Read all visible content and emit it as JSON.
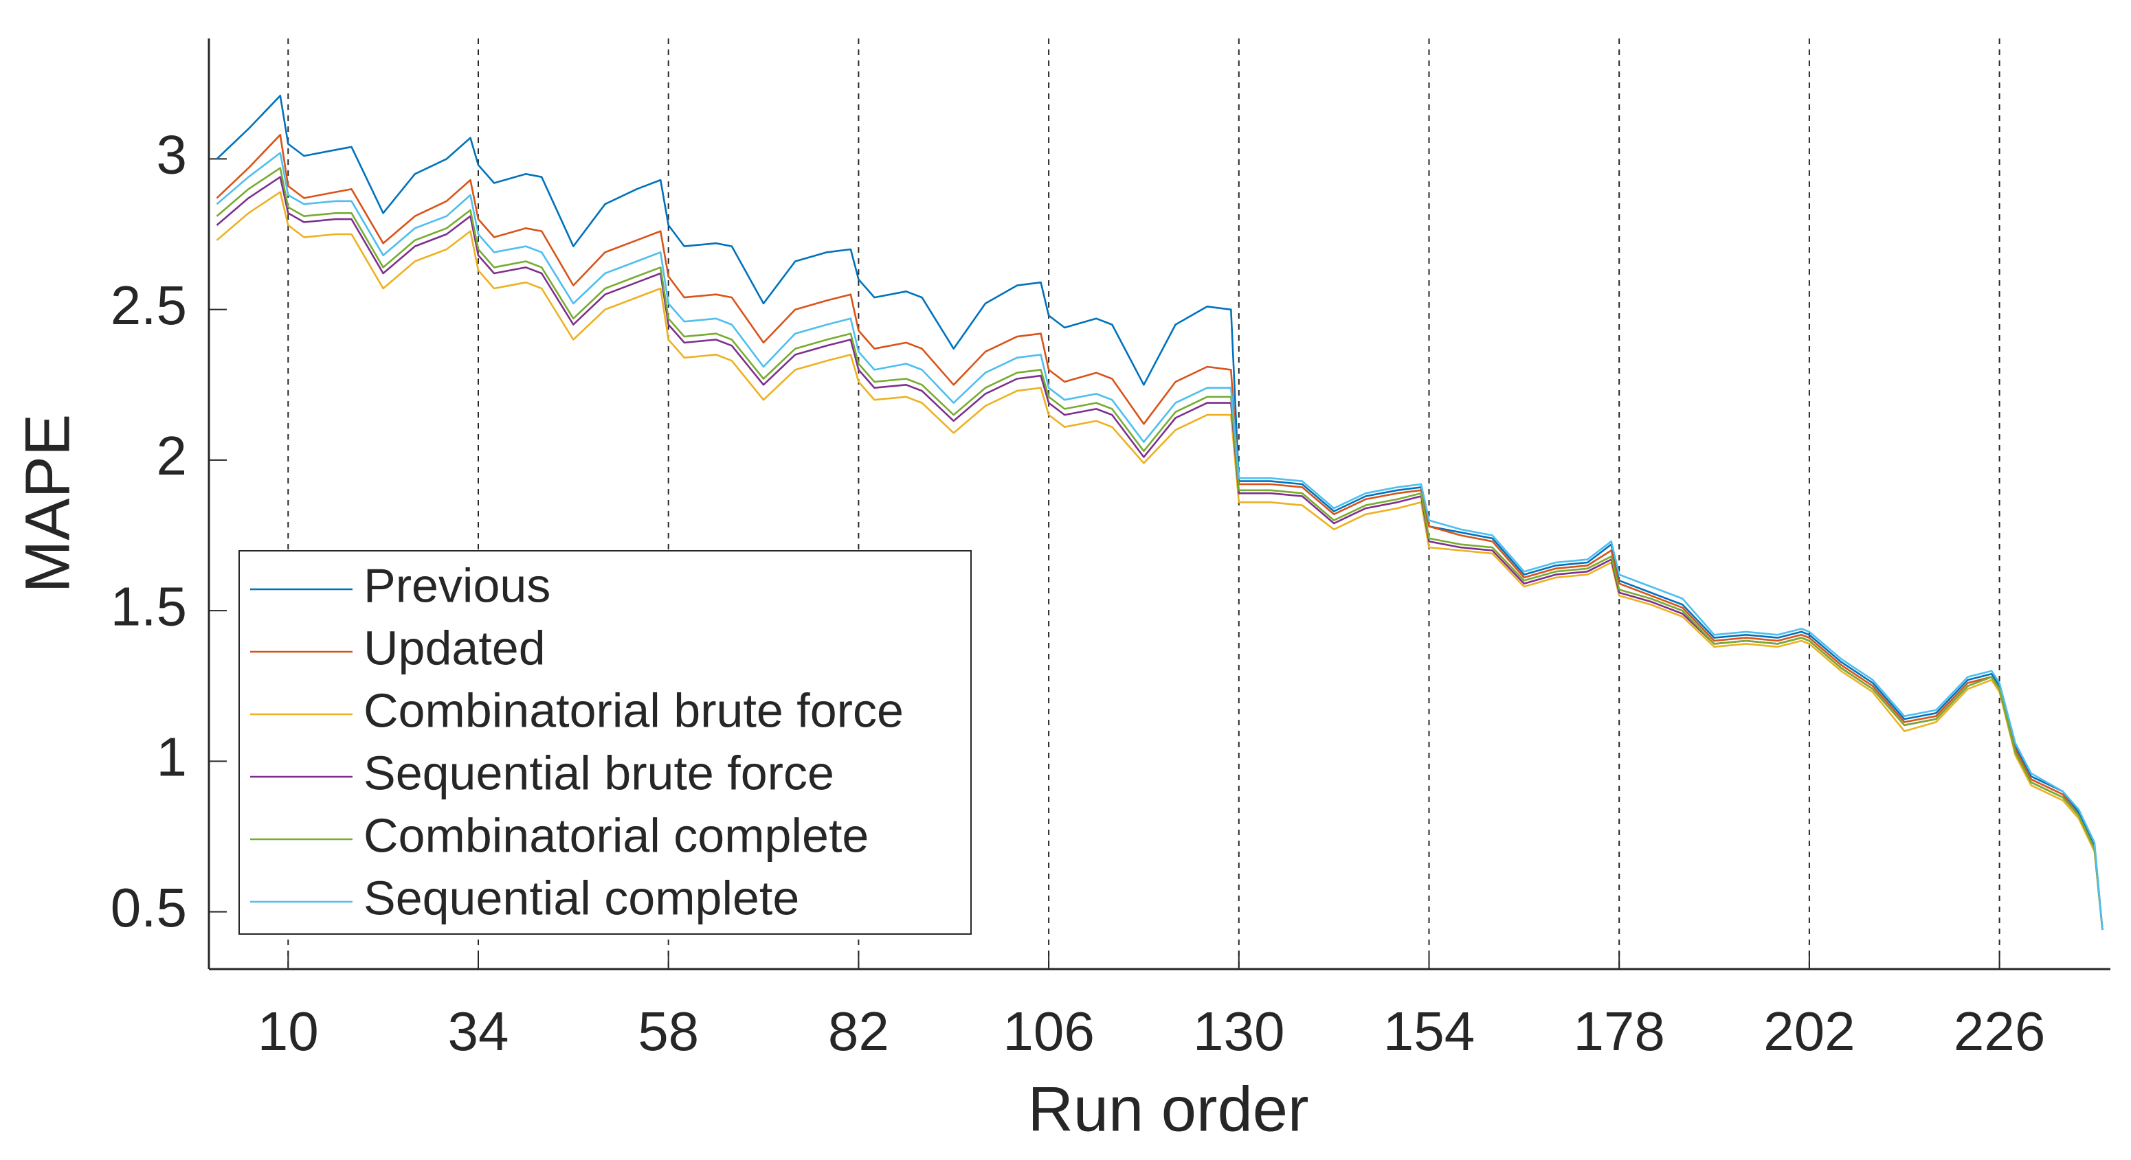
{
  "chart_data": {
    "type": "line",
    "xlabel": "Run order",
    "ylabel": "MAPE",
    "x": [
      1,
      5,
      9,
      10,
      12,
      16,
      18,
      22,
      26,
      30,
      33,
      34,
      36,
      40,
      42,
      46,
      50,
      54,
      57,
      58,
      60,
      64,
      66,
      70,
      74,
      78,
      81,
      82,
      84,
      88,
      90,
      94,
      98,
      102,
      105,
      106,
      108,
      112,
      114,
      118,
      122,
      126,
      129,
      130,
      134,
      138,
      142,
      146,
      150,
      153,
      154,
      158,
      162,
      166,
      170,
      174,
      177,
      178,
      182,
      186,
      190,
      194,
      198,
      201,
      202,
      206,
      210,
      214,
      218,
      222,
      225,
      226,
      228,
      230,
      234,
      236,
      238,
      239
    ],
    "series": [
      {
        "name": "Previous",
        "color": "#0072BD",
        "values": [
          3.0,
          3.1,
          3.21,
          3.05,
          3.01,
          3.03,
          3.04,
          2.82,
          2.95,
          3.0,
          3.07,
          2.98,
          2.92,
          2.95,
          2.94,
          2.71,
          2.85,
          2.9,
          2.93,
          2.78,
          2.71,
          2.72,
          2.71,
          2.52,
          2.66,
          2.69,
          2.7,
          2.6,
          2.54,
          2.56,
          2.54,
          2.37,
          2.52,
          2.58,
          2.59,
          2.48,
          2.44,
          2.47,
          2.45,
          2.25,
          2.45,
          2.51,
          2.5,
          1.93,
          1.93,
          1.92,
          1.83,
          1.88,
          1.9,
          1.91,
          1.78,
          1.76,
          1.74,
          1.62,
          1.65,
          1.66,
          1.72,
          1.6,
          1.56,
          1.52,
          1.41,
          1.42,
          1.41,
          1.43,
          1.42,
          1.33,
          1.26,
          1.14,
          1.16,
          1.27,
          1.29,
          1.25,
          1.05,
          0.95,
          0.9,
          0.83,
          0.72,
          0.44
        ]
      },
      {
        "name": "Updated",
        "color": "#D95319",
        "values": [
          2.87,
          2.97,
          3.08,
          2.91,
          2.87,
          2.89,
          2.9,
          2.72,
          2.81,
          2.86,
          2.93,
          2.8,
          2.74,
          2.77,
          2.76,
          2.58,
          2.69,
          2.73,
          2.76,
          2.61,
          2.54,
          2.55,
          2.54,
          2.39,
          2.5,
          2.53,
          2.55,
          2.43,
          2.37,
          2.39,
          2.37,
          2.25,
          2.36,
          2.41,
          2.42,
          2.3,
          2.26,
          2.29,
          2.27,
          2.12,
          2.26,
          2.31,
          2.3,
          1.92,
          1.92,
          1.91,
          1.82,
          1.87,
          1.89,
          1.9,
          1.78,
          1.75,
          1.73,
          1.61,
          1.64,
          1.65,
          1.7,
          1.59,
          1.55,
          1.51,
          1.4,
          1.41,
          1.4,
          1.42,
          1.41,
          1.32,
          1.25,
          1.13,
          1.15,
          1.26,
          1.28,
          1.24,
          1.04,
          0.94,
          0.89,
          0.82,
          0.71,
          0.44
        ]
      },
      {
        "name": "Combinatorial brute force",
        "color": "#EDB120",
        "values": [
          2.73,
          2.82,
          2.89,
          2.78,
          2.74,
          2.75,
          2.75,
          2.57,
          2.66,
          2.7,
          2.76,
          2.63,
          2.57,
          2.59,
          2.57,
          2.4,
          2.5,
          2.54,
          2.57,
          2.4,
          2.34,
          2.35,
          2.33,
          2.2,
          2.3,
          2.33,
          2.35,
          2.26,
          2.2,
          2.21,
          2.19,
          2.09,
          2.18,
          2.23,
          2.24,
          2.15,
          2.11,
          2.13,
          2.11,
          1.99,
          2.1,
          2.15,
          2.15,
          1.86,
          1.86,
          1.85,
          1.77,
          1.82,
          1.84,
          1.86,
          1.71,
          1.7,
          1.69,
          1.58,
          1.61,
          1.62,
          1.66,
          1.55,
          1.52,
          1.48,
          1.38,
          1.39,
          1.38,
          1.4,
          1.39,
          1.3,
          1.23,
          1.1,
          1.13,
          1.24,
          1.27,
          1.23,
          1.02,
          0.92,
          0.87,
          0.81,
          0.7,
          0.44
        ]
      },
      {
        "name": "Sequential brute force",
        "color": "#7E2F8E",
        "values": [
          2.78,
          2.87,
          2.94,
          2.82,
          2.79,
          2.8,
          2.8,
          2.62,
          2.71,
          2.75,
          2.81,
          2.68,
          2.62,
          2.64,
          2.62,
          2.45,
          2.55,
          2.59,
          2.62,
          2.45,
          2.39,
          2.4,
          2.38,
          2.25,
          2.35,
          2.38,
          2.4,
          2.3,
          2.24,
          2.25,
          2.23,
          2.13,
          2.22,
          2.27,
          2.28,
          2.19,
          2.15,
          2.17,
          2.15,
          2.01,
          2.14,
          2.19,
          2.19,
          1.89,
          1.89,
          1.88,
          1.79,
          1.84,
          1.86,
          1.88,
          1.73,
          1.71,
          1.7,
          1.59,
          1.62,
          1.63,
          1.67,
          1.56,
          1.53,
          1.49,
          1.39,
          1.4,
          1.39,
          1.41,
          1.4,
          1.31,
          1.24,
          1.12,
          1.14,
          1.25,
          1.28,
          1.24,
          1.03,
          0.93,
          0.88,
          0.82,
          0.71,
          0.44
        ]
      },
      {
        "name": "Combinatorial complete",
        "color": "#77AC30",
        "values": [
          2.81,
          2.9,
          2.97,
          2.84,
          2.81,
          2.82,
          2.82,
          2.64,
          2.73,
          2.77,
          2.83,
          2.7,
          2.64,
          2.66,
          2.64,
          2.47,
          2.57,
          2.61,
          2.64,
          2.47,
          2.41,
          2.42,
          2.4,
          2.27,
          2.37,
          2.4,
          2.42,
          2.32,
          2.26,
          2.27,
          2.25,
          2.15,
          2.24,
          2.29,
          2.3,
          2.21,
          2.17,
          2.19,
          2.17,
          2.03,
          2.16,
          2.21,
          2.21,
          1.9,
          1.9,
          1.89,
          1.8,
          1.85,
          1.87,
          1.89,
          1.74,
          1.72,
          1.71,
          1.6,
          1.63,
          1.64,
          1.68,
          1.57,
          1.54,
          1.5,
          1.39,
          1.4,
          1.39,
          1.41,
          1.4,
          1.31,
          1.24,
          1.12,
          1.14,
          1.25,
          1.28,
          1.24,
          1.03,
          0.93,
          0.88,
          0.82,
          0.71,
          0.44
        ]
      },
      {
        "name": "Sequential complete",
        "color": "#4DBEEE",
        "values": [
          2.85,
          2.94,
          3.02,
          2.88,
          2.85,
          2.86,
          2.86,
          2.68,
          2.77,
          2.81,
          2.88,
          2.75,
          2.69,
          2.71,
          2.69,
          2.52,
          2.62,
          2.66,
          2.69,
          2.52,
          2.46,
          2.47,
          2.45,
          2.31,
          2.42,
          2.45,
          2.47,
          2.36,
          2.3,
          2.32,
          2.3,
          2.19,
          2.29,
          2.34,
          2.35,
          2.24,
          2.2,
          2.22,
          2.2,
          2.06,
          2.19,
          2.24,
          2.24,
          1.94,
          1.94,
          1.93,
          1.84,
          1.89,
          1.91,
          1.92,
          1.8,
          1.77,
          1.75,
          1.63,
          1.66,
          1.67,
          1.73,
          1.62,
          1.58,
          1.54,
          1.42,
          1.43,
          1.42,
          1.44,
          1.43,
          1.34,
          1.27,
          1.15,
          1.17,
          1.28,
          1.3,
          1.26,
          1.06,
          0.96,
          0.9,
          0.84,
          0.73,
          0.44
        ]
      }
    ],
    "xlim": [
      0,
      240
    ],
    "xticks": [
      10,
      34,
      58,
      82,
      106,
      130,
      154,
      178,
      202,
      226
    ],
    "ylim": [
      0.31,
      3.4
    ],
    "yticks": [
      0.5,
      1,
      1.5,
      2,
      2.5,
      3
    ],
    "xgrid": true,
    "legend": "lower left"
  }
}
